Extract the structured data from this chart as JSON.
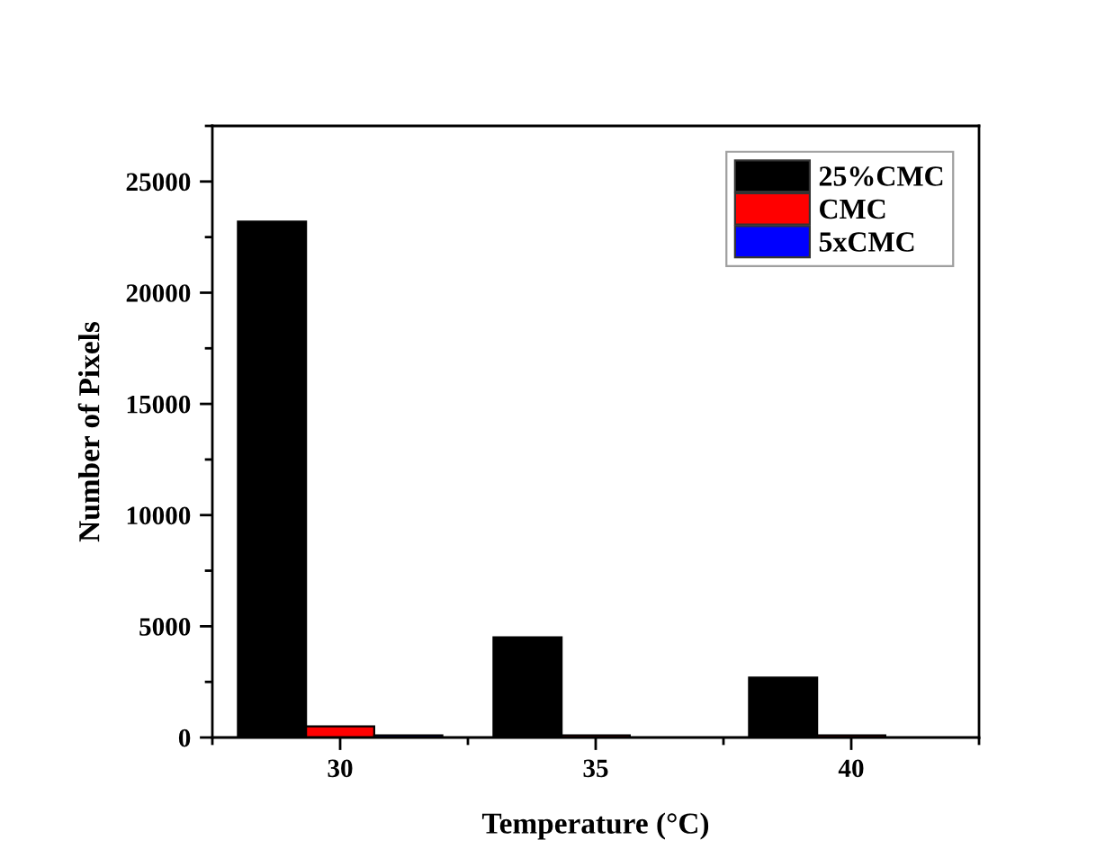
{
  "chart_data": {
    "type": "bar",
    "x": [
      30,
      35,
      40
    ],
    "xlabel": "Temperature (°C)",
    "ylabel": "Number of Pixels",
    "series": [
      {
        "name": "25%CMC",
        "color": "#000000",
        "values": [
          23200,
          4500,
          2700
        ]
      },
      {
        "name": "CMC",
        "color": "#ff0000",
        "values": [
          500,
          100,
          100
        ]
      },
      {
        "name": "5xCMC",
        "color": "#0000ff",
        "values": [
          100,
          0,
          0
        ]
      }
    ],
    "xlim": [
      27.5,
      42.5
    ],
    "xticks": [
      30,
      35,
      40
    ],
    "ylim": [
      0,
      27500
    ],
    "yticks": [
      0,
      5000,
      10000,
      15000,
      20000,
      25000
    ],
    "legend": "top right",
    "grid": false
  }
}
